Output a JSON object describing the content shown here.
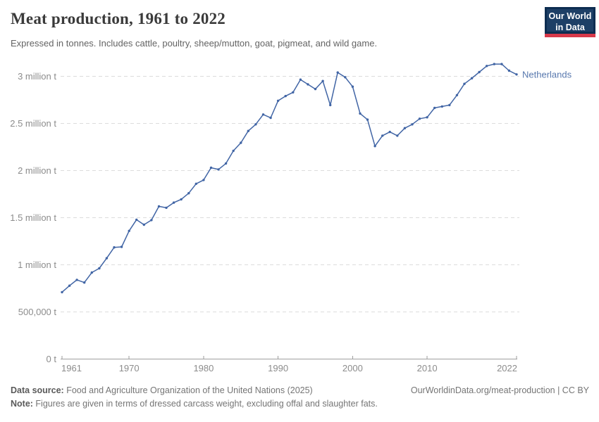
{
  "header": {
    "title": "Meat production, 1961 to 2022",
    "subtitle": "Expressed in tonnes. Includes cattle, poultry, sheep/mutton, goat, pigmeat, and wild game."
  },
  "logo": {
    "line1": "Our World",
    "line2": "in Data"
  },
  "chart_data": {
    "type": "line",
    "title": "Meat production, 1961 to 2022",
    "xlabel": "",
    "ylabel": "",
    "unit": "t",
    "grid": "horizontal-dashed",
    "legend_position": "end-of-line-label",
    "ylim": [
      0,
      3200000
    ],
    "xlim": [
      1961,
      2022
    ],
    "xticks": [
      1961,
      1970,
      1980,
      1990,
      2000,
      2010,
      2022
    ],
    "yticks": [
      {
        "value": 0,
        "label": "0 t"
      },
      {
        "value": 500000,
        "label": "500,000 t"
      },
      {
        "value": 1000000,
        "label": "1 million t"
      },
      {
        "value": 1500000,
        "label": "1.5 million t"
      },
      {
        "value": 2000000,
        "label": "2 million t"
      },
      {
        "value": 2500000,
        "label": "2.5 million t"
      },
      {
        "value": 3000000,
        "label": "3 million t"
      }
    ],
    "x": [
      1961,
      1962,
      1963,
      1964,
      1965,
      1966,
      1967,
      1968,
      1969,
      1970,
      1971,
      1972,
      1973,
      1974,
      1975,
      1976,
      1977,
      1978,
      1979,
      1980,
      1981,
      1982,
      1983,
      1984,
      1985,
      1986,
      1987,
      1988,
      1989,
      1990,
      1991,
      1992,
      1993,
      1994,
      1995,
      1996,
      1997,
      1998,
      1999,
      2000,
      2001,
      2002,
      2003,
      2004,
      2005,
      2006,
      2007,
      2008,
      2009,
      2010,
      2011,
      2012,
      2013,
      2014,
      2015,
      2016,
      2017,
      2018,
      2019,
      2020,
      2021,
      2022
    ],
    "series": [
      {
        "name": "Netherlands",
        "values": [
          710000,
          778000,
          840000,
          812000,
          918000,
          963000,
          1070000,
          1185000,
          1190000,
          1360000,
          1478000,
          1425000,
          1475000,
          1620000,
          1605000,
          1660000,
          1695000,
          1760000,
          1860000,
          1900000,
          2030000,
          2012000,
          2075000,
          2210000,
          2295000,
          2420000,
          2490000,
          2595000,
          2560000,
          2740000,
          2790000,
          2830000,
          2965000,
          2915000,
          2865000,
          2950000,
          2695000,
          3040000,
          2990000,
          2890000,
          2605000,
          2540000,
          2260000,
          2370000,
          2410000,
          2370000,
          2450000,
          2490000,
          2550000,
          2565000,
          2665000,
          2680000,
          2695000,
          2800000,
          2920000,
          2980000,
          3045000,
          3110000,
          3130000,
          3130000,
          3060000,
          3020000
        ]
      }
    ],
    "colors": {
      "line": "#4165a5",
      "entity_label": "#5878ae",
      "grid": "#dcdcdc",
      "axis": "#9e9e9e",
      "tick_text": "#8c8c8c"
    }
  },
  "footer": {
    "source_label": "Data source:",
    "source_text": " Food and Agriculture Organization of the United Nations (2025)",
    "link": "OurWorldinData.org/meat-production | CC BY",
    "note_label": "Note:",
    "note_text": " Figures are given in terms of dressed carcass weight, excluding offal and slaughter fats."
  }
}
